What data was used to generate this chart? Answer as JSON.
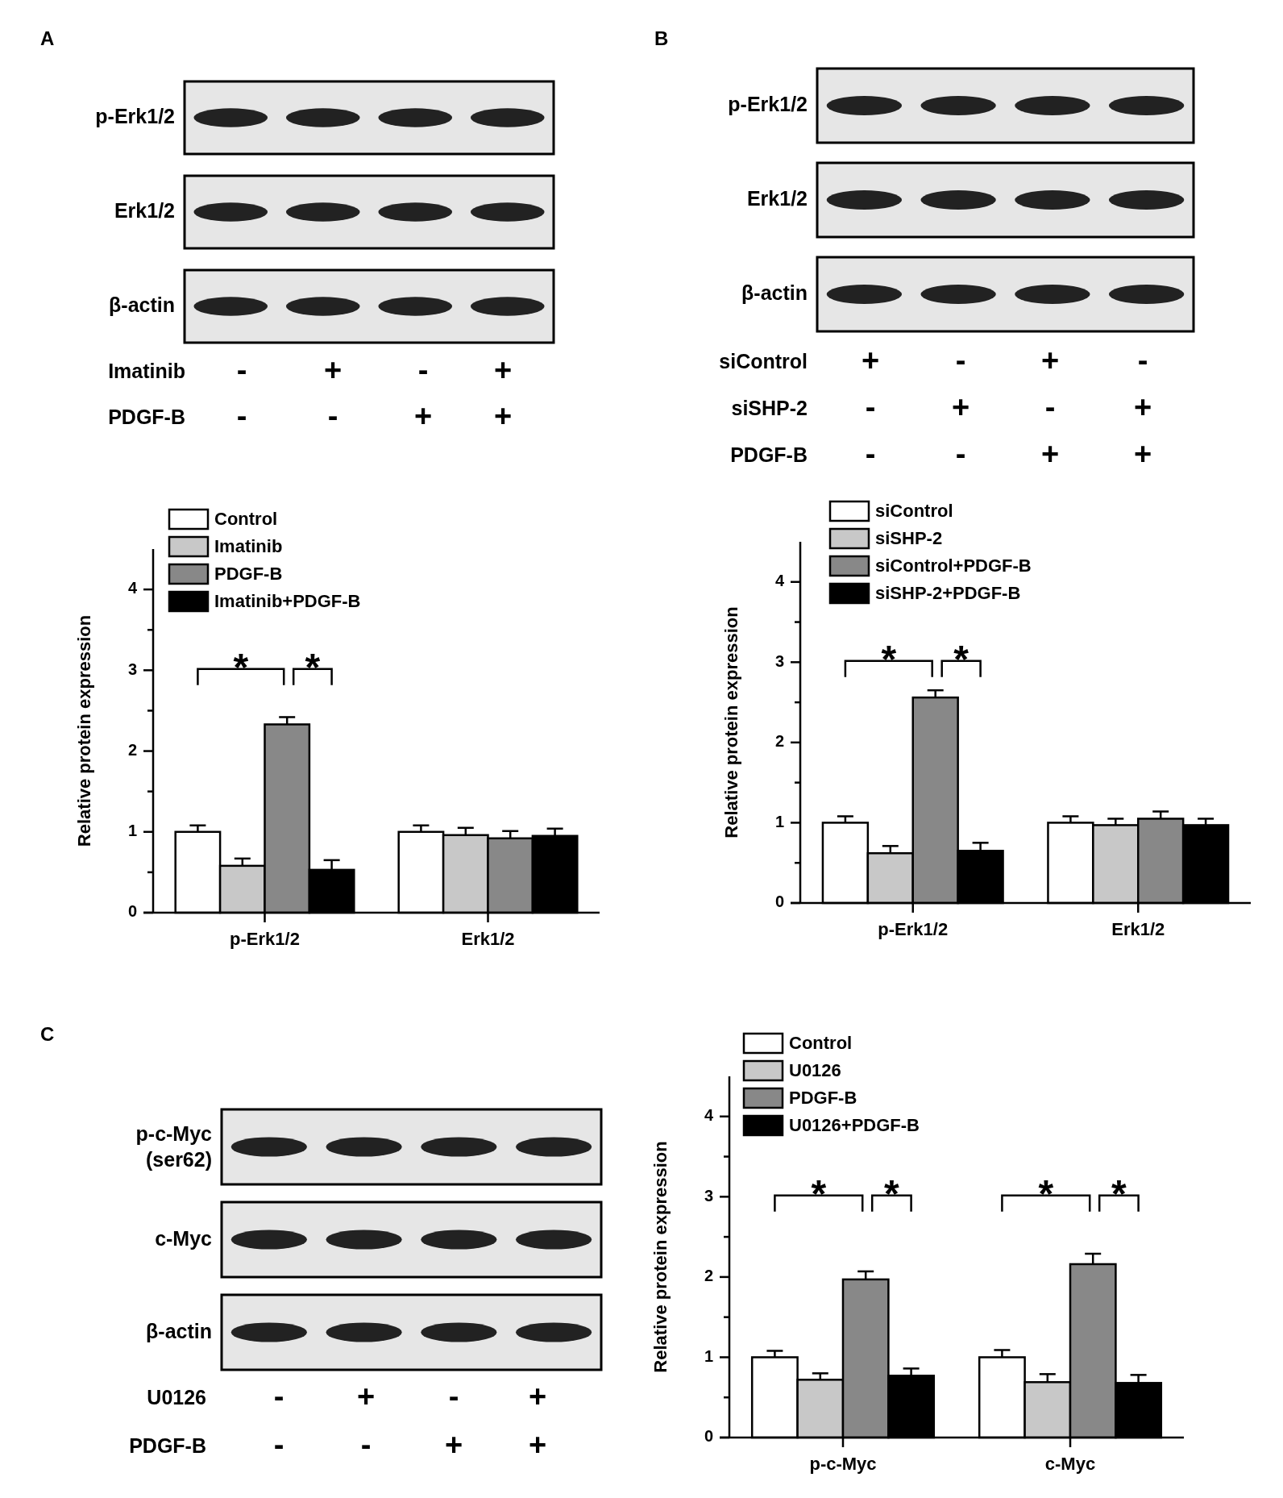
{
  "chart_data": [
    {
      "type": "other",
      "title": "A",
      "categories": [
        null,
        null,
        null,
        null
      ],
      "y_categories": [
        "p-Erk1/2",
        "Erk1/2",
        "β-actin"
      ],
      "y2_categories": [
        "Imatinib",
        "PDGF-B"
      ],
      "cell_labels": [
        [
          "-",
          "+",
          "-",
          "+"
        ],
        [
          "-",
          "-",
          "+",
          "+"
        ]
      ]
    },
    {
      "type": "other",
      "title": "B",
      "categories": [
        null,
        null,
        null,
        null
      ],
      "y_categories": [
        "p-Erk1/2",
        "Erk1/2",
        "β-actin"
      ],
      "y2_categories": [
        "siControl",
        "siSHP-2",
        "PDGF-B"
      ],
      "cell_labels": [
        [
          "+",
          "-",
          "+",
          "-"
        ],
        [
          "-",
          "+",
          "-",
          "+"
        ],
        [
          "-",
          "-",
          "+",
          "+"
        ]
      ]
    },
    {
      "type": "bar",
      "categories": [
        "p-Erk1/2",
        "Erk1/2"
      ],
      "ylabel": "Relative protein expression",
      "ylim": [
        0,
        4.5
      ],
      "yticks": [
        0,
        {
          "value": 0.5,
          "label": null
        },
        1,
        {
          "value": 1.5,
          "label": null
        },
        2,
        {
          "value": 2.5,
          "label": null
        },
        3,
        {
          "value": 3.5,
          "label": null
        },
        4
      ],
      "legend": "top left",
      "annotations": [
        "*",
        "*"
      ],
      "series": [
        {
          "name": "Control",
          "color": "#ffffff",
          "values": [
            1.0,
            1.0
          ],
          "errors": [
            0.08,
            0.08
          ]
        },
        {
          "name": "Imatinib",
          "color": "#c8c8c8",
          "values": [
            0.58,
            0.96
          ],
          "errors": [
            0.09,
            0.09
          ]
        },
        {
          "name": "PDGF-B",
          "color": "#888888",
          "values": [
            2.33,
            0.92
          ],
          "errors": [
            0.09,
            0.09
          ]
        },
        {
          "name": "Imatinib+PDGF-B",
          "color": "#000000",
          "values": [
            0.53,
            0.95
          ],
          "errors": [
            0.12,
            0.09
          ]
        }
      ]
    },
    {
      "type": "bar",
      "categories": [
        "p-Erk1/2",
        "Erk1/2"
      ],
      "ylabel": "Relative protein expression",
      "ylim": [
        0,
        4.5
      ],
      "yticks": [
        0,
        {
          "value": 0.5,
          "label": null
        },
        1,
        {
          "value": 1.5,
          "label": null
        },
        2,
        {
          "value": 2.5,
          "label": null
        },
        3,
        {
          "value": 3.5,
          "label": null
        },
        4
      ],
      "legend": "top left",
      "annotations": [
        "*",
        "*"
      ],
      "series": [
        {
          "name": "siControl",
          "color": "#ffffff",
          "values": [
            1.0,
            1.0
          ],
          "errors": [
            0.08,
            0.08
          ]
        },
        {
          "name": "siSHP-2",
          "color": "#c8c8c8",
          "values": [
            0.62,
            0.97
          ],
          "errors": [
            0.09,
            0.08
          ]
        },
        {
          "name": "siControl+PDGF-B",
          "color": "#888888",
          "values": [
            2.56,
            1.05
          ],
          "errors": [
            0.09,
            0.09
          ]
        },
        {
          "name": "siSHP-2+PDGF-B",
          "color": "#000000",
          "values": [
            0.65,
            0.97
          ],
          "errors": [
            0.1,
            0.08
          ]
        }
      ]
    },
    {
      "type": "other",
      "title": "C",
      "categories": [
        null,
        null,
        null,
        null
      ],
      "y_categories": [
        "p-c-Myc (ser62)",
        "c-Myc",
        "β-actin"
      ],
      "y2_categories": [
        "U0126",
        "PDGF-B"
      ],
      "cell_labels": [
        [
          "-",
          "+",
          "-",
          "+"
        ],
        [
          "-",
          "-",
          "+",
          "+"
        ]
      ]
    },
    {
      "type": "bar",
      "categories": [
        "p-c-Myc",
        "c-Myc"
      ],
      "ylabel": "Relative protein expression",
      "ylim": [
        0,
        4.5
      ],
      "yticks": [
        0,
        {
          "value": 0.5,
          "label": null
        },
        1,
        {
          "value": 1.5,
          "label": null
        },
        2,
        {
          "value": 2.5,
          "label": null
        },
        3,
        {
          "value": 3.5,
          "label": null
        },
        4
      ],
      "legend": "top left",
      "annotations": [
        "*",
        "*",
        "*",
        "*"
      ],
      "series": [
        {
          "name": "Control",
          "color": "#ffffff",
          "values": [
            1.0,
            1.0
          ],
          "errors": [
            0.08,
            0.09
          ]
        },
        {
          "name": "U0126",
          "color": "#c8c8c8",
          "values": [
            0.72,
            0.69
          ],
          "errors": [
            0.08,
            0.1
          ]
        },
        {
          "name": "PDGF-B",
          "color": "#888888",
          "values": [
            1.97,
            2.16
          ],
          "errors": [
            0.1,
            0.13
          ]
        },
        {
          "name": "U0126+PDGF-B",
          "color": "#000000",
          "values": [
            0.77,
            0.68
          ],
          "errors": [
            0.09,
            0.1
          ]
        }
      ]
    }
  ]
}
